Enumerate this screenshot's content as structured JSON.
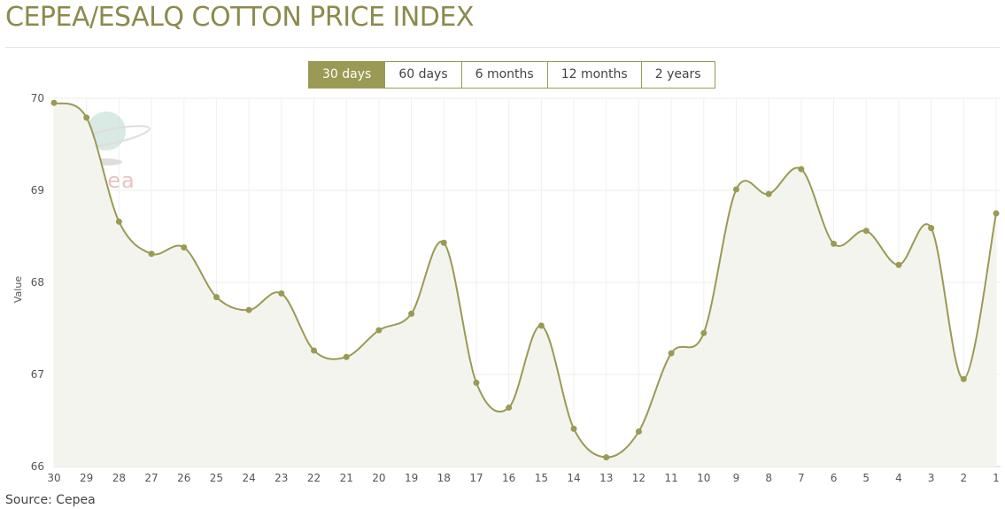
{
  "title": "CEPEA/ESALQ COTTON PRICE INDEX",
  "tabs": [
    {
      "label": "30 days",
      "active": true
    },
    {
      "label": "60 days"
    },
    {
      "label": "6 months"
    },
    {
      "label": "12 months"
    },
    {
      "label": "2 years"
    }
  ],
  "source": "Source: Cepea",
  "watermark": "cepea",
  "colors": {
    "accent": "#9a9a55",
    "fill": "#f4f4ee",
    "watermark": "#e8c4c0"
  },
  "chart_data": {
    "type": "area",
    "title": "CEPEA/ESALQ COTTON PRICE INDEX",
    "xlabel": "",
    "ylabel": "Value",
    "ylim": [
      66,
      70
    ],
    "yticks": [
      66,
      67,
      68,
      69,
      70
    ],
    "categories": [
      "30",
      "29",
      "28",
      "27",
      "26",
      "25",
      "24",
      "23",
      "22",
      "21",
      "20",
      "19",
      "18",
      "17",
      "16",
      "15",
      "14",
      "13",
      "12",
      "11",
      "10",
      "9",
      "8",
      "7",
      "6",
      "5",
      "4",
      "3",
      "2",
      "1"
    ],
    "values": [
      69.95,
      69.79,
      68.66,
      68.31,
      68.38,
      67.84,
      67.7,
      67.88,
      67.26,
      67.19,
      67.48,
      67.66,
      68.43,
      66.91,
      66.64,
      67.53,
      66.41,
      66.1,
      66.38,
      67.23,
      67.45,
      69.01,
      68.96,
      69.23,
      68.42,
      68.56,
      68.19,
      68.59,
      66.95,
      68.75
    ],
    "grid": true,
    "legend": "none"
  }
}
